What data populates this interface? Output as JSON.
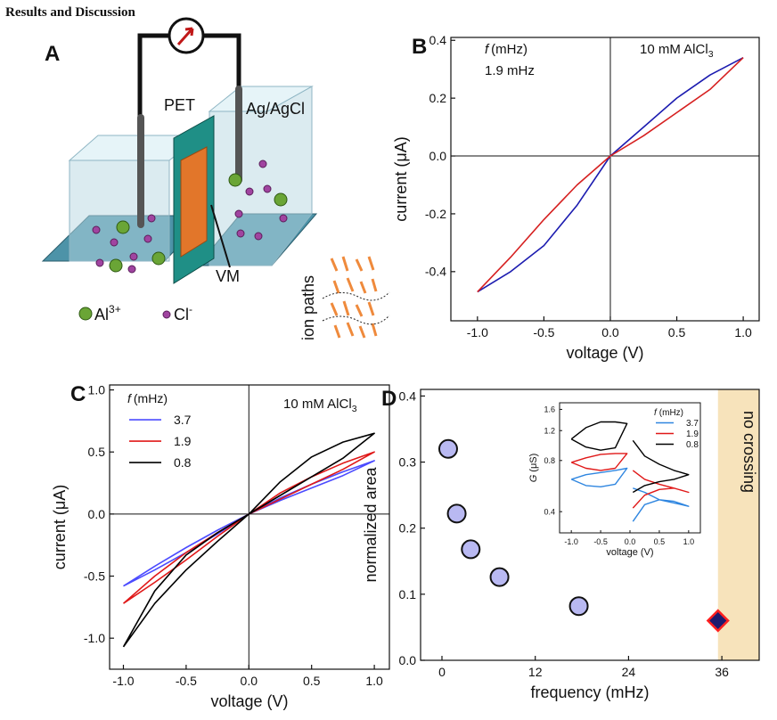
{
  "heading": "Results and Discussion",
  "panel_a": {
    "letter": "A",
    "membrane_label": "PET",
    "electrode_label": "Ag/AgCl",
    "vm_label": "VM",
    "cation": {
      "symbol": "Al",
      "charge": "3+"
    },
    "anion": {
      "symbol": "Cl",
      "charge": "-"
    },
    "inset_label": "ion paths"
  },
  "chart_data": [
    {
      "type": "line",
      "panel": "B",
      "xlabel": "voltage (V)",
      "ylabel": "current (μA)",
      "annotations": [
        {
          "italic": "f",
          "text": "(mHz)"
        },
        "1.9 mHz",
        {
          "text": "10 mM AlCl",
          "sub": "3"
        }
      ],
      "xlim": [
        -1.2,
        1.12
      ],
      "ylim": [
        -0.57,
        0.41
      ],
      "zero_lines": true,
      "xticks": [
        {
          "value": -1,
          "label": "-1.0"
        },
        -0.5,
        {
          "value": 0,
          "label": "0.0"
        },
        0.5,
        {
          "value": 1,
          "label": "1.0"
        }
      ],
      "yticks": [
        -0.4,
        -0.2,
        {
          "value": 0,
          "label": "0.0"
        },
        0.2,
        0.4
      ],
      "x": [
        -1,
        -0.75,
        -0.5,
        -0.25,
        0,
        0.25,
        0.5,
        0.75,
        1,
        0.75,
        0.5,
        0.25,
        0,
        -0.25,
        -0.5,
        -0.75,
        -1
      ],
      "series": [
        {
          "color": "#1c1cb0",
          "values": [
            -0.47,
            -0.4,
            -0.31,
            -0.17,
            0,
            0.1,
            0.2,
            0.28,
            0.34,
            null,
            null,
            null,
            null,
            null,
            null,
            null,
            null
          ]
        },
        {
          "color": "#d62020",
          "values": [
            null,
            null,
            null,
            null,
            null,
            null,
            null,
            null,
            0.34,
            0.23,
            0.15,
            0.07,
            0,
            -0.1,
            -0.22,
            -0.35,
            -0.47
          ]
        }
      ]
    },
    {
      "type": "line",
      "panel": "C",
      "xlabel": "voltage (V)",
      "ylabel": "current (μA)",
      "annotations": [
        {
          "text": "10 mM AlCl",
          "sub": "3"
        }
      ],
      "legend_title": {
        "italic": "f",
        "text": "(mHz)"
      },
      "legend": "upper left",
      "xlim": [
        -1.11,
        1.12
      ],
      "ylim": [
        -1.25,
        1.04
      ],
      "zero_lines": true,
      "xticks": [
        {
          "value": -1,
          "label": "-1.0"
        },
        -0.5,
        {
          "value": 0,
          "label": "0.0"
        },
        0.5,
        {
          "value": 1,
          "label": "1.0"
        }
      ],
      "yticks": [
        {
          "value": -1,
          "label": "-1.0"
        },
        -0.5,
        {
          "value": 0,
          "label": "0.0"
        },
        0.5,
        {
          "value": 1,
          "label": "1.0"
        }
      ],
      "x": [
        -1,
        -0.75,
        -0.5,
        -0.25,
        0,
        0.25,
        0.5,
        0.75,
        1,
        0.75,
        0.5,
        0.25,
        0,
        -0.25,
        -0.5,
        -0.75,
        -1
      ],
      "series": [
        {
          "name": "3.7",
          "color": "#4b4bff",
          "values": [
            -0.58,
            -0.45,
            -0.31,
            -0.16,
            0,
            0.13,
            0.24,
            0.34,
            0.43,
            0.31,
            0.21,
            0.11,
            0,
            -0.13,
            -0.27,
            -0.42,
            -0.58
          ]
        },
        {
          "name": "1.9",
          "color": "#e01818",
          "values": [
            -0.72,
            -0.55,
            -0.37,
            -0.18,
            0,
            0.17,
            0.3,
            0.41,
            0.5,
            0.36,
            0.24,
            0.12,
            0,
            -0.15,
            -0.31,
            -0.5,
            -0.72
          ]
        },
        {
          "name": "0.8",
          "color": "#000000",
          "values": [
            -1.07,
            -0.72,
            -0.45,
            -0.22,
            0,
            0.26,
            0.46,
            0.58,
            0.65,
            0.45,
            0.3,
            0.15,
            0,
            -0.15,
            -0.33,
            -0.62,
            -1.07
          ]
        }
      ]
    },
    {
      "type": "scatter",
      "panel": "D",
      "xlabel": "frequency (mHz)",
      "ylabel": "normalized area",
      "xlim": [
        -2.75,
        40.8
      ],
      "ylim": [
        0,
        0.41
      ],
      "xticks": [
        0,
        12,
        24,
        36
      ],
      "yticks": [
        {
          "value": 0,
          "label": "0.0"
        },
        0.1,
        0.2,
        0.3,
        0.4
      ],
      "shaded_region": [
        35.5,
        40.8
      ],
      "shaded_label": "no crossing",
      "shaded_color": "#f7e3bb",
      "series": [
        {
          "marker": "circle",
          "color": "#b9b9f2",
          "edge_color": "#111111",
          "x": [
            0.8,
            1.9,
            3.7,
            7.4,
            17.6
          ],
          "values": [
            0.32,
            0.222,
            0.168,
            0.126,
            0.082
          ]
        },
        {
          "marker": "diamond",
          "color": "#1e1a6e",
          "edge_color": "#ff2020",
          "x": [
            35.5
          ],
          "values": [
            0.06
          ]
        }
      ],
      "inset": {
        "type": "line",
        "xlabel": "voltage (V)",
        "ylabel": {
          "italic": "G",
          "text": "(μS)"
        },
        "legend_title": {
          "italic": "f",
          "text": "(mHz)"
        },
        "legend": "upper right",
        "yscale": "log",
        "xlim": [
          -1.2,
          1.2
        ],
        "ylim": [
          0.3,
          1.75
        ],
        "xticks": [
          {
            "value": -1,
            "label": "-1.0"
          },
          -0.5,
          {
            "value": 0,
            "label": "0.0"
          },
          0.5,
          {
            "value": 1,
            "label": "1.0"
          }
        ],
        "yticks": [
          0.4,
          0.8,
          1.2,
          1.6
        ],
        "x": [
          -1,
          -0.75,
          -0.5,
          -0.25,
          -0.05,
          -0.25,
          -0.5,
          -0.75,
          -1,
          null,
          0.05,
          0.25,
          0.5,
          0.75,
          1,
          0.75,
          0.5,
          0.25,
          0.05
        ],
        "series": [
          {
            "name": "3.7",
            "color": "#2f86e0",
            "values": [
              0.62,
              0.66,
              0.68,
              0.7,
              0.72,
              0.58,
              0.56,
              0.57,
              0.62,
              null,
              0.55,
              0.52,
              0.47,
              0.45,
              0.43,
              0.46,
              0.47,
              0.44,
              0.35
            ]
          },
          {
            "name": "1.9",
            "color": "#e01818",
            "values": [
              0.78,
              0.83,
              0.87,
              0.88,
              0.88,
              0.72,
              0.7,
              0.72,
              0.78,
              null,
              0.7,
              0.62,
              0.58,
              0.55,
              0.52,
              0.55,
              0.54,
              0.5,
              0.42
            ]
          },
          {
            "name": "0.8",
            "color": "#000000",
            "values": [
              1.07,
              1.25,
              1.35,
              1.35,
              1.32,
              0.95,
              0.92,
              0.96,
              1.07,
              null,
              1.05,
              0.85,
              0.76,
              0.7,
              0.66,
              0.62,
              0.6,
              0.57,
              0.52
            ]
          }
        ]
      }
    }
  ]
}
